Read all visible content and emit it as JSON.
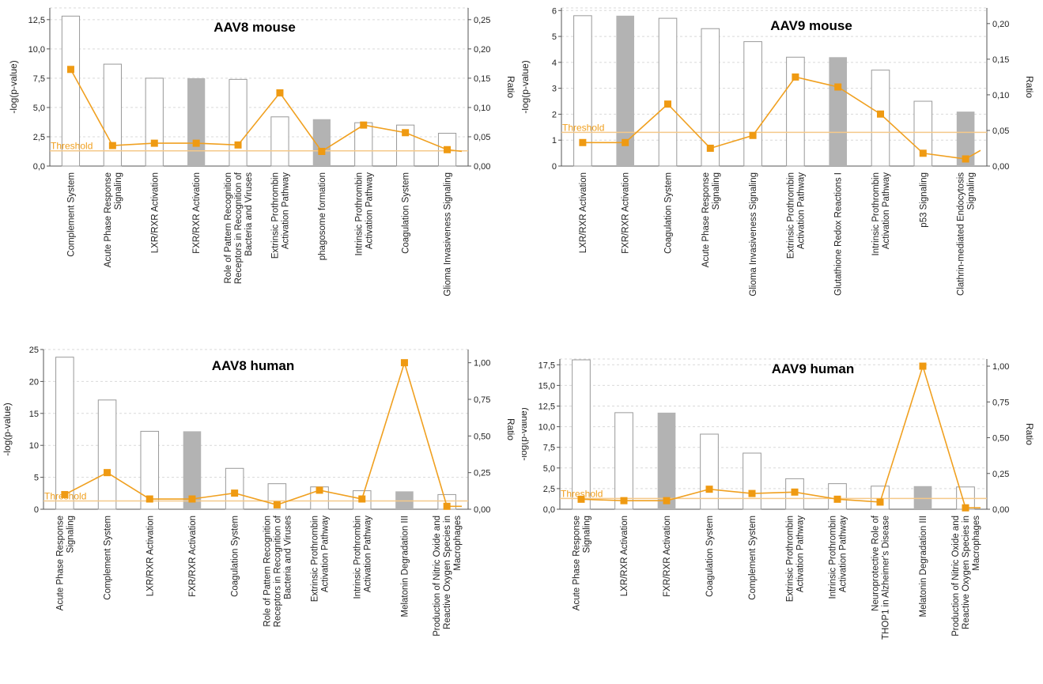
{
  "colors": {
    "line": "#f0a020",
    "marker": "#ef9a12",
    "threshold": "#f5c98a",
    "bar_filled": "#b3b3b3",
    "bar_outline": "#999999",
    "grid": "#d9d9d9",
    "axis": "#555555"
  },
  "chart_data": [
    {
      "type": "bar",
      "title": "AAV8 mouse",
      "ylabel": "-log(p-value)",
      "y2label": "Ratio",
      "threshold_label": "Threshold",
      "threshold": 1.3,
      "ylim": [
        0,
        13.5
      ],
      "y_ticks": [
        0,
        2.5,
        5,
        7.5,
        10,
        12.5
      ],
      "y_tick_labels": [
        "0,0",
        "2,5",
        "5,0",
        "7,5",
        "10,0",
        "12,5"
      ],
      "y2lim": [
        0,
        0.27
      ],
      "y2_ticks": [
        0,
        0.05,
        0.1,
        0.15,
        0.2,
        0.25
      ],
      "y2_tick_labels": [
        "0,00",
        "0,05",
        "0,10",
        "0,15",
        "0,20",
        "0,25"
      ],
      "grid": true,
      "categories": [
        [
          "Complement System"
        ],
        [
          "Acute Phase Response",
          "Signaling"
        ],
        [
          "LXR/RXR Activation"
        ],
        [
          "FXR/RXR Activation"
        ],
        [
          "Role of Pattern Recognition",
          "Receptors in Recognition of",
          "Bacteria and Viruses"
        ],
        [
          "Extrinsic Prothrombin",
          "Activation Pathway"
        ],
        [
          "phagosome formation"
        ],
        [
          "Intrinsic Prothrombin",
          "Activation Pathway"
        ],
        [
          "Coagulation System"
        ],
        [
          "Glioma Invasiveness Signaling"
        ]
      ],
      "neg_log_p": [
        12.8,
        8.7,
        7.5,
        7.5,
        7.4,
        4.2,
        4.0,
        3.7,
        3.5,
        2.8
      ],
      "filled": [
        false,
        false,
        false,
        true,
        false,
        false,
        true,
        false,
        false,
        false
      ],
      "ratio": [
        0.165,
        0.035,
        0.039,
        0.039,
        0.036,
        0.125,
        0.025,
        0.07,
        0.057,
        0.028
      ],
      "ratio_tail": 0.025
    },
    {
      "type": "bar",
      "title": "AAV9 mouse",
      "ylabel": "-log(p-value)",
      "y2label": "Ratio",
      "threshold_label": "Threshold",
      "threshold": 1.3,
      "ylim": [
        0,
        6.1
      ],
      "y_ticks": [
        0,
        1,
        2,
        3,
        4,
        5,
        6
      ],
      "y_tick_labels": [
        "0",
        "1",
        "2",
        "3",
        "4",
        "5",
        "6"
      ],
      "y2lim": [
        0,
        0.222
      ],
      "y2_ticks": [
        0,
        0.05,
        0.1,
        0.15,
        0.2
      ],
      "y2_tick_labels": [
        "0,00",
        "0,05",
        "0,10",
        "0,15",
        "0,20"
      ],
      "grid": true,
      "categories": [
        [
          "LXR/RXR Activation"
        ],
        [
          "FXR/RXR Activation"
        ],
        [
          "Coagulation System"
        ],
        [
          "Acute Phase Response",
          "Signaling"
        ],
        [
          "Glioma Invasiveness Signaling"
        ],
        [
          "Extrinsic Prothrombin",
          "Activation Pathway"
        ],
        [
          "Glutathione Redox Reactions I"
        ],
        [
          "Intrinsic Prothrombin",
          "Activation Pathway"
        ],
        [
          "p53 Signaling"
        ],
        [
          "Clathrin-mediated Endocytosis",
          "Signaling"
        ]
      ],
      "neg_log_p": [
        5.8,
        5.8,
        5.7,
        5.3,
        4.8,
        4.2,
        4.2,
        3.7,
        2.5,
        2.1
      ],
      "filled": [
        false,
        true,
        false,
        false,
        false,
        false,
        true,
        false,
        false,
        true
      ],
      "ratio": [
        0.033,
        0.033,
        0.087,
        0.025,
        0.043,
        0.125,
        0.111,
        0.073,
        0.018,
        0.01
      ],
      "ratio_tail": 0.022
    },
    {
      "type": "bar",
      "title": "AAV8  human",
      "ylabel": "-log(p-value)",
      "y2label": "Ratio",
      "threshold_label": "Threshold",
      "threshold": 1.3,
      "ylim": [
        0,
        25
      ],
      "y_ticks": [
        0,
        5,
        10,
        15,
        20,
        25
      ],
      "y_tick_labels": [
        "0",
        "5",
        "10",
        "15",
        "20",
        "25"
      ],
      "y2lim": [
        0,
        1.09
      ],
      "y2_ticks": [
        0,
        0.25,
        0.5,
        0.75,
        1.0
      ],
      "y2_tick_labels": [
        "0,00",
        "0,25",
        "0,50",
        "0,75",
        "1,00"
      ],
      "grid": true,
      "categories": [
        [
          "Acute Phase Response",
          "Signaling"
        ],
        [
          "Complement System"
        ],
        [
          "LXR/RXR  Activation"
        ],
        [
          "FXR/RXR  Activation"
        ],
        [
          "Coagulation System"
        ],
        [
          "Role of Pattern Recognition",
          "Receptors in Recognition of",
          "Bacteria and Viruses"
        ],
        [
          "Extrinsic Prothrombin",
          "Activation Pathway"
        ],
        [
          "Intrinsic Prothrombin",
          "Activation Pathway"
        ],
        [
          "Melatonin Degradation III"
        ],
        [
          "Production of Nitric Oxide and",
          "Reactive Oxygen Species in",
          "Macrophages"
        ]
      ],
      "neg_log_p": [
        23.8,
        17.1,
        12.2,
        12.2,
        6.4,
        4.0,
        3.5,
        2.9,
        2.8,
        2.3
      ],
      "filled": [
        false,
        false,
        false,
        true,
        false,
        false,
        false,
        false,
        true,
        false
      ],
      "ratio": [
        0.1,
        0.25,
        0.07,
        0.07,
        0.11,
        0.03,
        0.13,
        0.07,
        1.0,
        0.02
      ],
      "ratio_tail": 0.02
    },
    {
      "type": "bar",
      "title": "AAV9  human",
      "ylabel": "-log(p-value)",
      "y2label": "Ratio",
      "threshold_label": "Threshold",
      "threshold": 1.3,
      "ylim": [
        0,
        18.2
      ],
      "y_ticks": [
        0,
        2.5,
        5,
        7.5,
        10,
        12.5,
        15,
        17.5
      ],
      "y_tick_labels": [
        "0,0",
        "2,5",
        "5,0",
        "7,5",
        "10,0",
        "12,5",
        "15,0",
        "17,5"
      ],
      "y2lim": [
        0,
        1.05
      ],
      "y2_ticks": [
        0,
        0.25,
        0.5,
        0.75,
        1.0
      ],
      "y2_tick_labels": [
        "0,00",
        "0,25",
        "0,50",
        "0,75",
        "1,00"
      ],
      "grid": true,
      "categories": [
        [
          "Acute Phase Response",
          "Signaling"
        ],
        [
          "LXR/RXR Activation"
        ],
        [
          "FXR/RXR Activation"
        ],
        [
          "Coagulation System"
        ],
        [
          "Complement System"
        ],
        [
          "Extrinsic Prothrombin",
          "Activation Pathway"
        ],
        [
          "Intrinsic Prothrombin",
          "Activation Pathway"
        ],
        [
          "Neuroprotective Role of",
          "THOP1 in Alzheimer's Disease"
        ],
        [
          "Melatonin Degradation III"
        ],
        [
          "Production of Nitric Oxide and",
          "Reactive Oxygen Species in",
          "Macrophages"
        ]
      ],
      "neg_log_p": [
        18.1,
        11.7,
        11.7,
        9.1,
        6.8,
        3.7,
        3.1,
        2.8,
        2.8,
        2.7
      ],
      "filled": [
        false,
        false,
        true,
        false,
        false,
        false,
        false,
        false,
        true,
        false
      ],
      "ratio": [
        0.07,
        0.06,
        0.06,
        0.14,
        0.11,
        0.12,
        0.07,
        0.05,
        1.0,
        0.01
      ],
      "ratio_tail": 0.01
    }
  ]
}
